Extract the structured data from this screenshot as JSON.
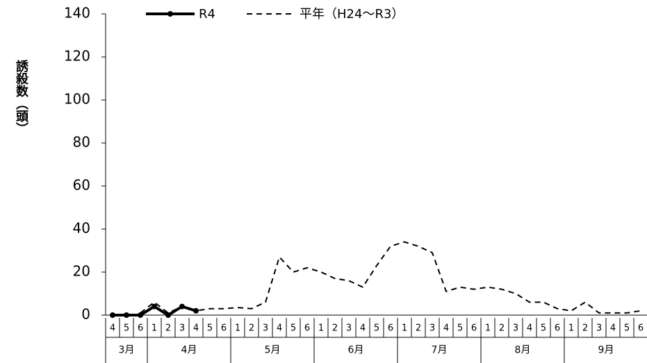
{
  "chart_data": {
    "type": "line",
    "y_label": "誘殺数（頭）",
    "categories": [
      "4",
      "5",
      "6",
      "1",
      "2",
      "3",
      "4",
      "5",
      "6",
      "1",
      "2",
      "3",
      "4",
      "5",
      "6",
      "1",
      "2",
      "3",
      "4",
      "5",
      "6",
      "1",
      "2",
      "3",
      "4",
      "5",
      "6",
      "1",
      "2",
      "3",
      "4",
      "5",
      "6",
      "1",
      "2",
      "3",
      "4",
      "5",
      "6"
    ],
    "groups": [
      {
        "label": "3月",
        "span": 3
      },
      {
        "label": "4月",
        "span": 6
      },
      {
        "label": "5月",
        "span": 6
      },
      {
        "label": "6月",
        "span": 6
      },
      {
        "label": "7月",
        "span": 6
      },
      {
        "label": "8月",
        "span": 6
      },
      {
        "label": "9月",
        "span": 6
      }
    ],
    "series": [
      {
        "name": "R4",
        "color": "#000000",
        "style": "solid",
        "marker": true,
        "values": [
          0,
          0,
          0,
          4,
          0,
          4,
          2,
          null,
          null,
          null,
          null,
          null,
          null,
          null,
          null,
          null,
          null,
          null,
          null,
          null,
          null,
          null,
          null,
          null,
          null,
          null,
          null,
          null,
          null,
          null,
          null,
          null,
          null,
          null,
          null,
          null,
          null,
          null,
          null
        ]
      },
      {
        "name": "平年（H24～R3）",
        "color": "#000000",
        "style": "dashed",
        "marker": false,
        "values": [
          null,
          null,
          1,
          6,
          1,
          4,
          2,
          3,
          3,
          3.5,
          3,
          6,
          27,
          20,
          22,
          20,
          17,
          16,
          13,
          23,
          32,
          34,
          32,
          29,
          11,
          13,
          12,
          13,
          12,
          10,
          6,
          6,
          3,
          2,
          6,
          1,
          1,
          1,
          2
        ]
      }
    ],
    "ylim": [
      0,
      140
    ],
    "yticks": [
      0,
      20,
      40,
      60,
      80,
      100,
      120,
      140
    ]
  }
}
